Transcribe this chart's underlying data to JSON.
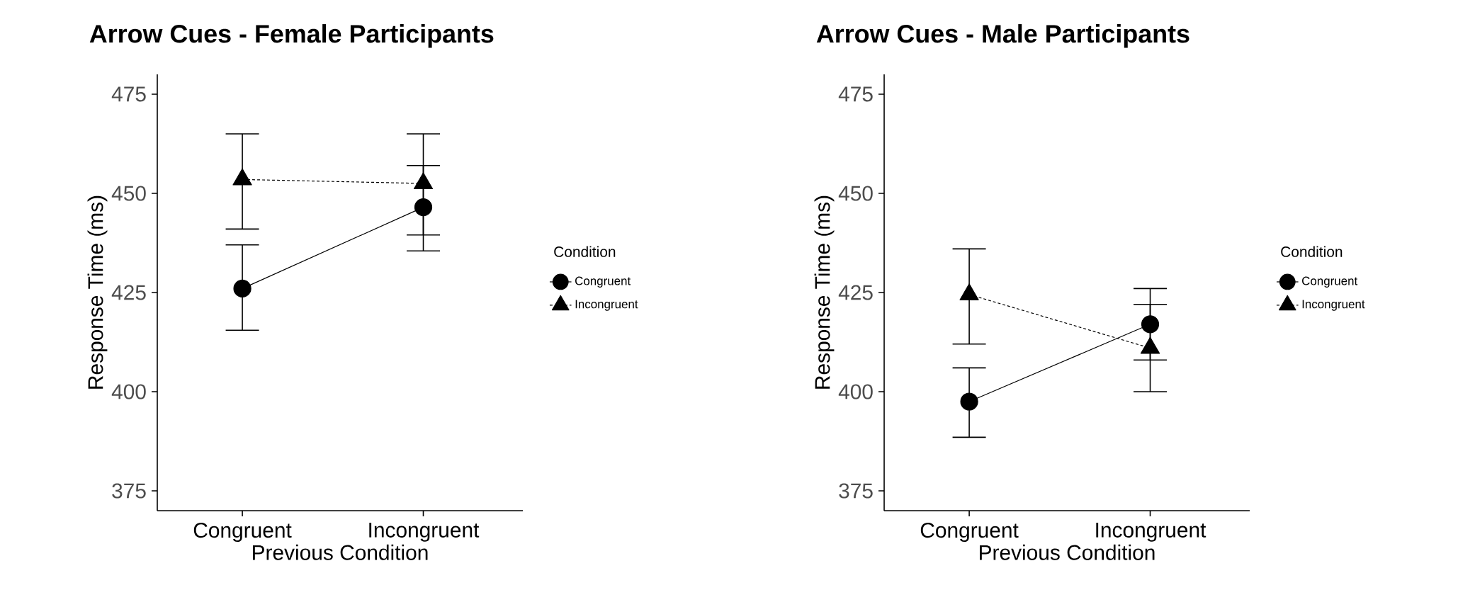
{
  "chart_data": [
    {
      "type": "line",
      "title": "Arrow Cues - Female Participants",
      "xlabel": "Previous Condition",
      "ylabel": "Response Time (ms)",
      "legend_title": "Condition",
      "categories": [
        "Congruent",
        "Incongruent"
      ],
      "ylim": [
        370,
        480
      ],
      "yticks": [
        375,
        400,
        425,
        450,
        475
      ],
      "grid": false,
      "legend": "right",
      "series": [
        {
          "name": "Congruent",
          "color": "#000000",
          "marker": "circle",
          "line_style": "solid",
          "values": [
            426,
            446.5
          ],
          "errors": [
            [
              415.5,
              437
            ],
            [
              435.5,
              457
            ]
          ]
        },
        {
          "name": "Incongruent",
          "color": "#000000",
          "marker": "triangle",
          "line_style": "dotted",
          "values": [
            453.5,
            452.5
          ],
          "errors": [
            [
              441,
              465
            ],
            [
              439.5,
              465
            ]
          ]
        }
      ]
    },
    {
      "type": "line",
      "title": "Arrow Cues - Male Participants",
      "xlabel": "Previous Condition",
      "ylabel": "Response Time (ms)",
      "legend_title": "Condition",
      "categories": [
        "Congruent",
        "Incongruent"
      ],
      "ylim": [
        370,
        480
      ],
      "yticks": [
        375,
        400,
        425,
        450,
        475
      ],
      "grid": false,
      "legend": "right",
      "series": [
        {
          "name": "Congruent",
          "color": "#000000",
          "marker": "circle",
          "line_style": "solid",
          "values": [
            397.5,
            417
          ],
          "errors": [
            [
              388.5,
              406
            ],
            [
              408,
              426
            ]
          ]
        },
        {
          "name": "Incongruent",
          "color": "#000000",
          "marker": "triangle",
          "line_style": "dotted",
          "values": [
            424.5,
            411
          ],
          "errors": [
            [
              412,
              436
            ],
            [
              400,
              422
            ]
          ]
        }
      ]
    }
  ]
}
